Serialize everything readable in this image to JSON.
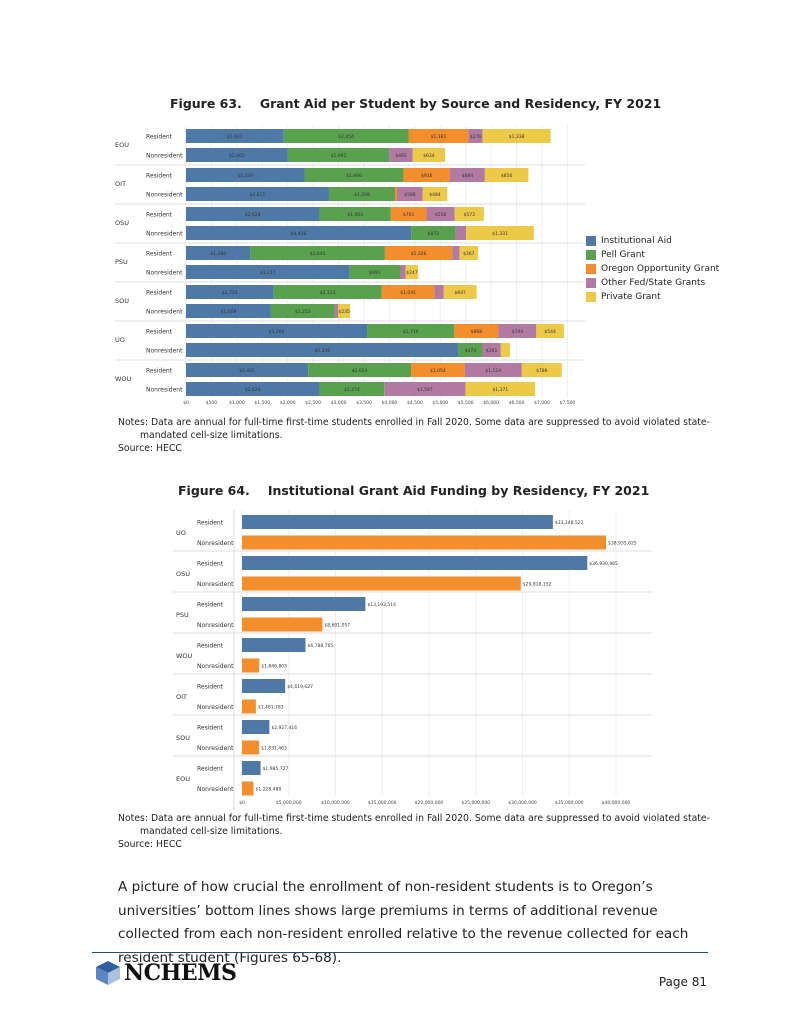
{
  "figure63": {
    "number": "Figure 63.",
    "title": "Grant Aid per Student by Source and Residency, FY 2021",
    "notes_line1": "Notes: Data are annual for full-time first-time students enrolled in Fall 2020. Some data are suppressed to avoid violated state-",
    "notes_line2": "mandated cell-size limitations.",
    "source": "Source: HECC"
  },
  "figure64": {
    "number": "Figure 64.",
    "title": "Institutional Grant Aid Funding by Residency, FY 2021",
    "notes_line1": "Notes: Data are annual for full-time first-time students enrolled in Fall 2020. Some data are suppressed to avoid violated state-",
    "notes_line2": "mandated cell-size limitations.",
    "source": "Source: HECC"
  },
  "paragraph": "A picture of how crucial the enrollment of non-resident students is to Oregon’s universities’ bottom lines shows large premiums in terms of additional revenue collected from each non-resident enrolled relative to the revenue collected for each resident student (Figures 65-68).",
  "footer": {
    "logo": "NCHEMS",
    "page": "Page 81"
  },
  "chart_data": [
    {
      "type": "bar",
      "orientation": "horizontal",
      "stacked": true,
      "groups": [
        "EOU",
        "OIT",
        "OSU",
        "PSU",
        "SOU",
        "UO",
        "WOU"
      ],
      "subcategories": [
        "Resident",
        "Nonresident"
      ],
      "legend_position": "right",
      "xlim": [
        0,
        7500
      ],
      "x_ticks": [
        "$0",
        "$500",
        "$1,000",
        "$1,500",
        "$2,000",
        "$2,500",
        "$3,000",
        "$3,500",
        "$4,000",
        "$4,500",
        "$5,000",
        "$5,500",
        "$6,000",
        "$6,500",
        "$7,000",
        "$7,500"
      ],
      "grid": true,
      "series": [
        {
          "name": "Institutional Aid",
          "color": "#4e79a7",
          "values": [
            [
              1921,
              2003
            ],
            [
              2330,
              2811
            ],
            [
              2624,
              4426
            ],
            [
              1266,
              3217
            ],
            [
              1724,
              1669
            ],
            [
              3560,
              5356
            ],
            [
              2401,
              2624
            ]
          ]
        },
        {
          "name": "Pell Grant",
          "color": "#59a14f",
          "values": [
            [
              2454,
              1991
            ],
            [
              1946,
              1298
            ],
            [
              1403,
              872
            ],
            [
              2645,
              991
            ],
            [
              2123,
              1253
            ],
            [
              1716,
              473
            ],
            [
              2024,
              1274
            ]
          ]
        },
        {
          "name": "Oregon Opportunity Grant",
          "color": "#f28e2b",
          "values": [
            [
              1181,
              0
            ],
            [
              916,
              40
            ],
            [
              701,
              0
            ],
            [
              1326,
              0
            ],
            [
              1041,
              0
            ],
            [
              868,
              0
            ],
            [
              1054,
              0
            ]
          ]
        },
        {
          "name": "Other Fed/State Grants",
          "color": "#b07aa1",
          "values": [
            [
              276,
              465
            ],
            [
              684,
              506
            ],
            [
              556,
              210
            ],
            [
              140,
              110
            ],
            [
              180,
              70
            ],
            [
              744,
              361
            ],
            [
              1124,
              1597
            ]
          ]
        },
        {
          "name": "Private Grant",
          "color": "#edc948",
          "values": [
            [
              1338,
              634
            ],
            [
              856,
              484
            ],
            [
              573,
              1331
            ],
            [
              367,
              247
            ],
            [
              647,
              235
            ],
            [
              544,
              180
            ],
            [
              786,
              1371
            ]
          ]
        }
      ],
      "labels": [
        {
          "group": "EOU",
          "rows": [
            [
              "$1,921",
              "$2,454",
              "$1,181",
              "$276",
              "$1,338"
            ],
            [
              "$2,003",
              "$1,991",
              "",
              "$465",
              "$634"
            ]
          ]
        },
        {
          "group": "OIT",
          "rows": [
            [
              "$2,330",
              "$1,946",
              "$916",
              "$684",
              "$856"
            ],
            [
              "$2,811",
              "$1,298",
              "",
              "$506",
              "$484"
            ]
          ]
        },
        {
          "group": "OSU",
          "rows": [
            [
              "$2,624",
              "$1,403",
              "$701",
              "$556",
              "$573"
            ],
            [
              "$4,426",
              "$872",
              "",
              "",
              "$1,331"
            ]
          ]
        },
        {
          "group": "PSU",
          "rows": [
            [
              "$1,266",
              "$2,645",
              "$1,326",
              "",
              "$367"
            ],
            [
              "$3,217",
              "$991",
              "",
              "",
              "$247"
            ]
          ]
        },
        {
          "group": "SOU",
          "rows": [
            [
              "$1,724",
              "$2,123",
              "$1,041",
              "",
              "$647"
            ],
            [
              "$1,669",
              "$1,253",
              "",
              "",
              "$235"
            ]
          ]
        },
        {
          "group": "UO",
          "rows": [
            [
              "$3,560",
              "$1,716",
              "$868",
              "$744",
              "$544"
            ],
            [
              "$5,356",
              "$473",
              "",
              "$361",
              ""
            ]
          ]
        },
        {
          "group": "WOU",
          "rows": [
            [
              "$2,401",
              "$2,024",
              "$1,054",
              "$1,124",
              "$786"
            ],
            [
              "$2,624",
              "$1,274",
              "",
              "$1,597",
              "$1,371"
            ]
          ]
        }
      ]
    },
    {
      "type": "bar",
      "orientation": "horizontal",
      "groups": [
        "UO",
        "OSU",
        "PSU",
        "WOU",
        "OIT",
        "SOU",
        "EOU"
      ],
      "subcategories": [
        "Resident",
        "Nonresident"
      ],
      "colors": {
        "Resident": "#4e79a7",
        "Nonresident": "#f28e2b"
      },
      "xlim": [
        0,
        40000000
      ],
      "x_ticks": [
        "$0",
        "$5,000,000",
        "$10,000,000",
        "$15,000,000",
        "$20,000,000",
        "$25,000,000",
        "$30,000,000",
        "$35,000,000",
        "$40,000,000"
      ],
      "grid": true,
      "values": [
        [
          33248522,
          38935625
        ],
        [
          36930965,
          29818152
        ],
        [
          13193514,
          8601057
        ],
        [
          6788765,
          1846803
        ],
        [
          4619627,
          1481783
        ],
        [
          2927416,
          1831463
        ],
        [
          1985727,
          1228488
        ]
      ],
      "labels": [
        [
          "$33,248,522",
          "$38,935,625"
        ],
        [
          "$36,930,965",
          "$29,818,152"
        ],
        [
          "$13,193,514",
          "$8,601,057"
        ],
        [
          "$6,788,765",
          "$1,846,803"
        ],
        [
          "$4,619,627",
          "$1,481,783"
        ],
        [
          "$2,927,416",
          "$1,831,463"
        ],
        [
          "$1,985,727",
          "$1,228,488"
        ]
      ]
    }
  ]
}
